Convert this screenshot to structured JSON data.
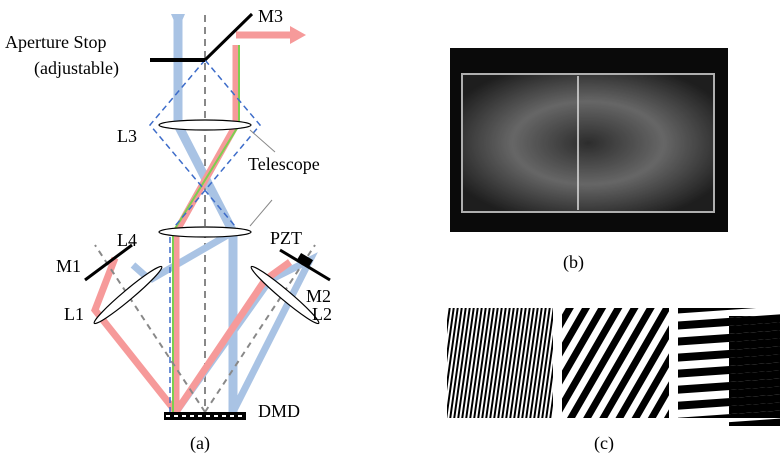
{
  "labels": {
    "aperture_stop": "Aperture Stop",
    "adjustable": "(adjustable)",
    "m3": "M3",
    "l3": "L3",
    "telescope": "Telescope",
    "l4": "L4",
    "pzt": "PZT",
    "m1": "M1",
    "m2": "M2",
    "l1": "L1",
    "l2": "L2",
    "dmd": "DMD"
  },
  "captions": {
    "a": "(a)",
    "b": "(b)",
    "c": "(c)"
  }
}
